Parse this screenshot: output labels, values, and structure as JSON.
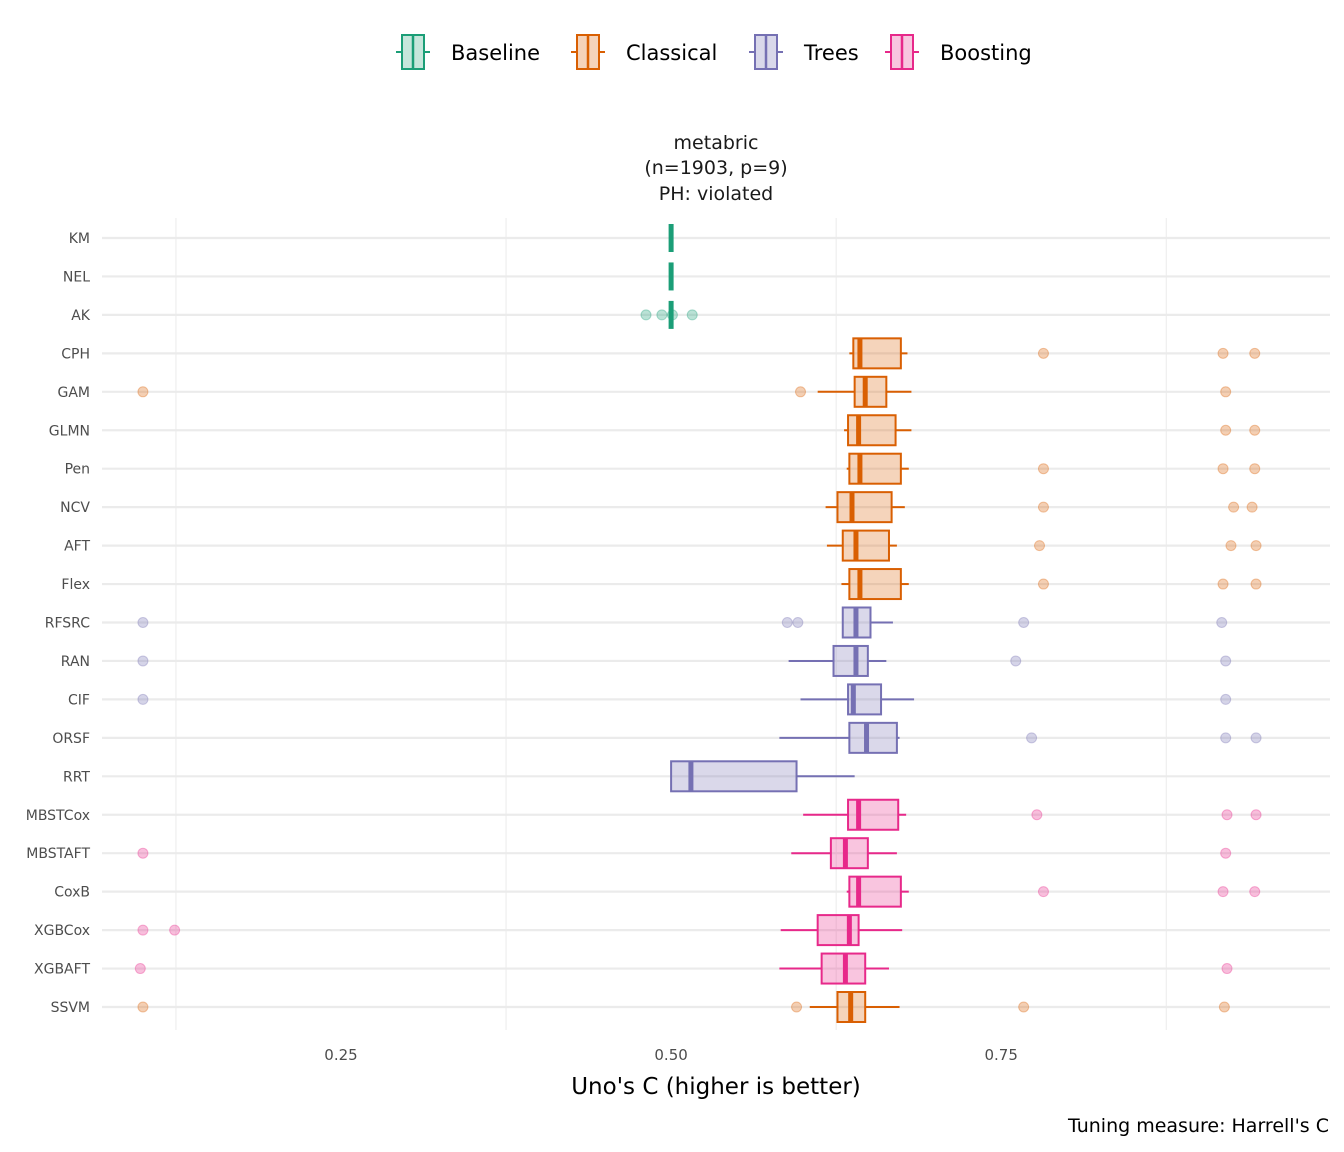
{
  "chart_data": {
    "type": "boxplot",
    "title": "metabric",
    "strip_lines": [
      "metabric",
      "(n=1903, p=9)",
      "PH: violated"
    ],
    "xlabel": "Uno's C (higher is better)",
    "ylabel": "",
    "caption": "Tuning measure: Harrell's C",
    "xlim": [
      0.069,
      0.999
    ],
    "xticks": [
      0.25,
      0.5,
      0.75
    ],
    "xtick_labels": [
      "0.25",
      "0.50",
      "0.75"
    ],
    "minor_grid": [
      0.125,
      0.375,
      0.625,
      0.875
    ],
    "grid": true,
    "legend": {
      "position": "top",
      "entries": [
        {
          "label": "Baseline",
          "color": "#1b9e77",
          "fill": "#c5e6db"
        },
        {
          "label": "Classical",
          "color": "#d95f02",
          "fill": "#f5d3ba"
        },
        {
          "label": "Trees",
          "color": "#7570b3",
          "fill": "#d9d8ea"
        },
        {
          "label": "Boosting",
          "color": "#e7298a",
          "fill": "#f8c6df"
        }
      ]
    },
    "series": [
      {
        "name": "KM",
        "group": "Baseline",
        "whisker_low": 0.5,
        "q1": 0.5,
        "median": 0.5,
        "q3": 0.5,
        "whisker_high": 0.5,
        "outliers": []
      },
      {
        "name": "NEL",
        "group": "Baseline",
        "whisker_low": 0.5,
        "q1": 0.5,
        "median": 0.5,
        "q3": 0.5,
        "whisker_high": 0.5,
        "outliers": []
      },
      {
        "name": "AK",
        "group": "Baseline",
        "whisker_low": 0.5,
        "q1": 0.5,
        "median": 0.5,
        "q3": 0.5,
        "whisker_high": 0.5,
        "outliers": [
          0.481,
          0.493,
          0.501,
          0.516
        ]
      },
      {
        "name": "CPH",
        "group": "Classical",
        "whisker_low": 0.635,
        "q1": 0.638,
        "median": 0.643,
        "q3": 0.674,
        "whisker_high": 0.679,
        "outliers": [
          0.782,
          0.918,
          0.942
        ]
      },
      {
        "name": "GAM",
        "group": "Classical",
        "whisker_low": 0.611,
        "q1": 0.639,
        "median": 0.647,
        "q3": 0.663,
        "whisker_high": 0.682,
        "outliers": [
          0.1,
          0.598,
          0.92
        ]
      },
      {
        "name": "GLMN",
        "group": "Classical",
        "whisker_low": 0.631,
        "q1": 0.634,
        "median": 0.642,
        "q3": 0.67,
        "whisker_high": 0.682,
        "outliers": [
          0.92,
          0.942
        ]
      },
      {
        "name": "Pen",
        "group": "Classical",
        "whisker_low": 0.633,
        "q1": 0.635,
        "median": 0.643,
        "q3": 0.674,
        "whisker_high": 0.68,
        "outliers": [
          0.782,
          0.918,
          0.942
        ]
      },
      {
        "name": "NCV",
        "group": "Classical",
        "whisker_low": 0.617,
        "q1": 0.626,
        "median": 0.637,
        "q3": 0.667,
        "whisker_high": 0.677,
        "outliers": [
          0.782,
          0.926,
          0.94
        ]
      },
      {
        "name": "AFT",
        "group": "Classical",
        "whisker_low": 0.618,
        "q1": 0.63,
        "median": 0.64,
        "q3": 0.665,
        "whisker_high": 0.671,
        "outliers": [
          0.779,
          0.924,
          0.943
        ]
      },
      {
        "name": "Flex",
        "group": "Classical",
        "whisker_low": 0.629,
        "q1": 0.635,
        "median": 0.643,
        "q3": 0.674,
        "whisker_high": 0.68,
        "outliers": [
          0.782,
          0.918,
          0.943
        ]
      },
      {
        "name": "RFSRC",
        "group": "Trees",
        "whisker_low": 0.63,
        "q1": 0.63,
        "median": 0.64,
        "q3": 0.651,
        "whisker_high": 0.668,
        "outliers": [
          0.1,
          0.588,
          0.596,
          0.767,
          0.917
        ]
      },
      {
        "name": "RAN",
        "group": "Trees",
        "whisker_low": 0.589,
        "q1": 0.623,
        "median": 0.64,
        "q3": 0.649,
        "whisker_high": 0.663,
        "outliers": [
          0.1,
          0.761,
          0.92
        ]
      },
      {
        "name": "CIF",
        "group": "Trees",
        "whisker_low": 0.598,
        "q1": 0.634,
        "median": 0.638,
        "q3": 0.659,
        "whisker_high": 0.684,
        "outliers": [
          0.1,
          0.92
        ]
      },
      {
        "name": "ORSF",
        "group": "Trees",
        "whisker_low": 0.582,
        "q1": 0.635,
        "median": 0.648,
        "q3": 0.671,
        "whisker_high": 0.673,
        "outliers": [
          0.773,
          0.92,
          0.943
        ]
      },
      {
        "name": "RRT",
        "group": "Trees",
        "whisker_low": 0.5,
        "q1": 0.5,
        "median": 0.515,
        "q3": 0.595,
        "whisker_high": 0.639,
        "outliers": []
      },
      {
        "name": "MBSTCox",
        "group": "Boosting",
        "whisker_low": 0.6,
        "q1": 0.634,
        "median": 0.642,
        "q3": 0.672,
        "whisker_high": 0.678,
        "outliers": [
          0.777,
          0.921,
          0.943
        ]
      },
      {
        "name": "MBSTAFT",
        "group": "Boosting",
        "whisker_low": 0.591,
        "q1": 0.621,
        "median": 0.632,
        "q3": 0.649,
        "whisker_high": 0.671,
        "outliers": [
          0.1,
          0.92
        ]
      },
      {
        "name": "CoxB",
        "group": "Boosting",
        "whisker_low": 0.633,
        "q1": 0.635,
        "median": 0.642,
        "q3": 0.674,
        "whisker_high": 0.68,
        "outliers": [
          0.782,
          0.918,
          0.942
        ]
      },
      {
        "name": "XGBCox",
        "group": "Boosting",
        "whisker_low": 0.583,
        "q1": 0.611,
        "median": 0.635,
        "q3": 0.642,
        "whisker_high": 0.675,
        "outliers": [
          0.1,
          0.124
        ]
      },
      {
        "name": "XGBAFT",
        "group": "Boosting",
        "whisker_low": 0.582,
        "q1": 0.614,
        "median": 0.632,
        "q3": 0.647,
        "whisker_high": 0.665,
        "outliers": [
          0.098,
          0.921
        ]
      },
      {
        "name": "SSVM",
        "group": "Classical",
        "whisker_low": 0.605,
        "q1": 0.626,
        "median": 0.636,
        "q3": 0.647,
        "whisker_high": 0.673,
        "outliers": [
          0.1,
          0.595,
          0.767,
          0.919
        ]
      }
    ]
  }
}
